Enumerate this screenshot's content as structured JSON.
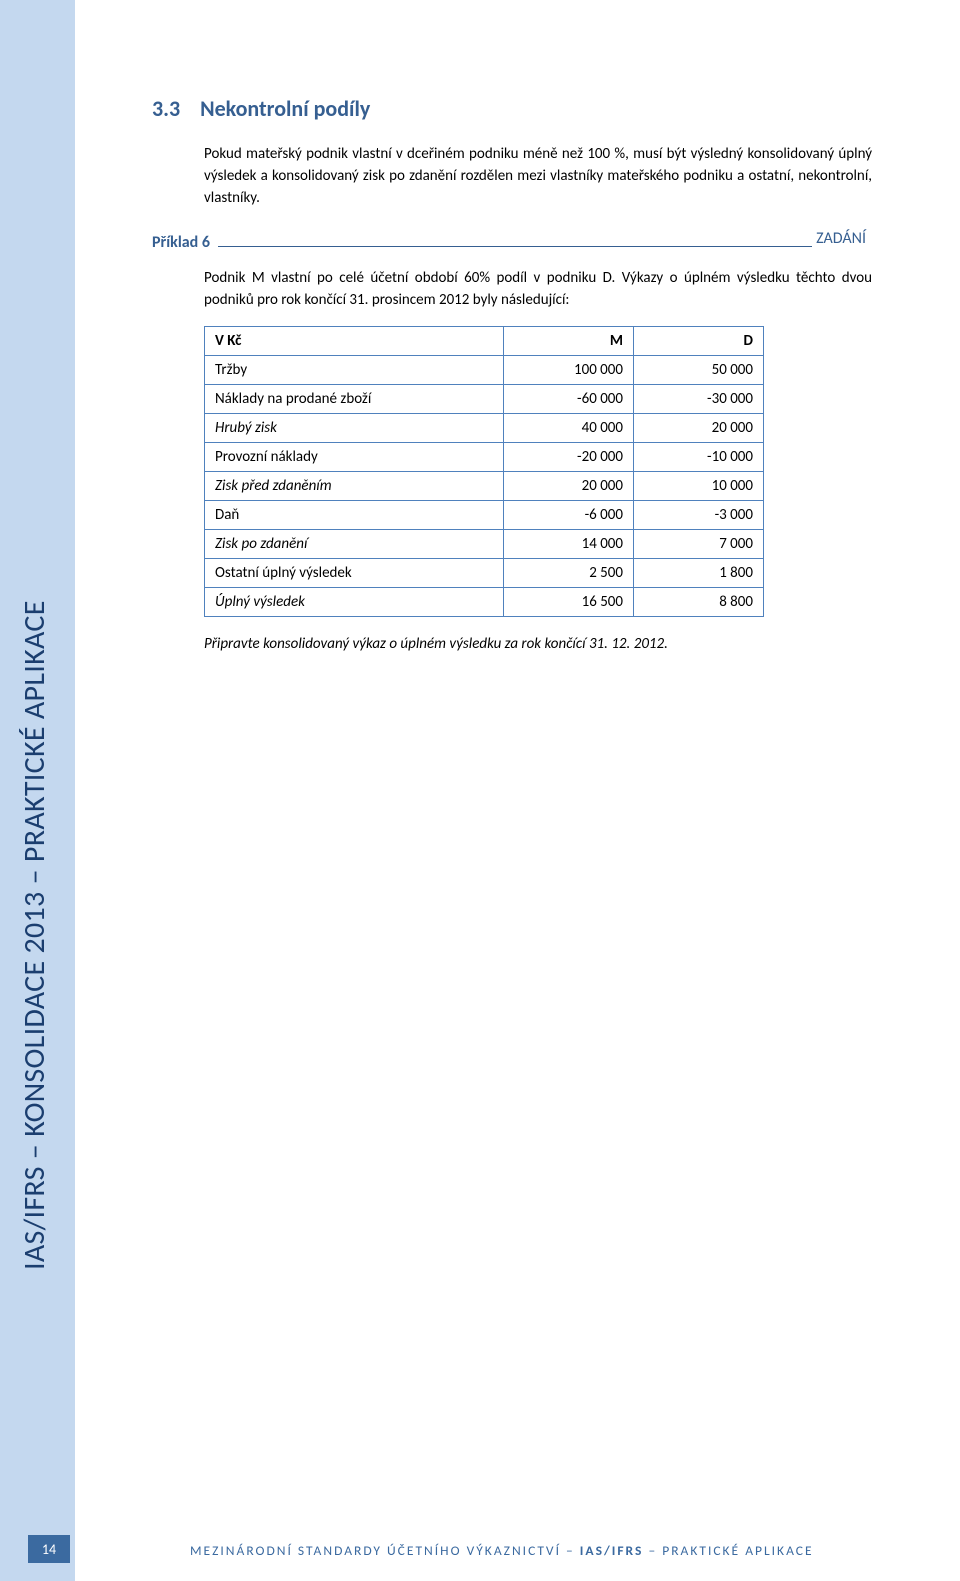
{
  "sidebar": {
    "vertical_label": "IAS/IFRS – KONSOLIDACE 2013 – PRAKTICKÉ APLIKACE",
    "bg_color": "#c4d8ef",
    "text_color": "#1b3e6f"
  },
  "heading": {
    "number": "3.3",
    "title": "Nekontrolní podíly",
    "color": "#365f91"
  },
  "intro_paragraph": "Pokud mateřský podnik vlastní v dceřiném podniku méně než 100 %, musí být výsledný konsolidovaný úplný výsledek a konsolidovaný zisk po zdanění rozdělen mezi vlastníky mateřského podniku a ostatní, nekontrolní, vlastníky.",
  "example": {
    "label": "Příklad 6",
    "zadani": "ZADÁNÍ",
    "color": "#365f91",
    "body": "Podnik M vlastní po celé účetní období 60% podíl v podniku D. Výkazy o úplném výsledku těchto dvou podniků pro rok končící 31. prosincem 2012 byly následující:"
  },
  "table": {
    "border_color": "#4f81bd",
    "columns": [
      "V Kč",
      "M",
      "D"
    ],
    "rows": [
      {
        "label": "Tržby",
        "m": "100 000",
        "d": "50 000",
        "italic": false
      },
      {
        "label": "Náklady na prodané zboží",
        "m": "-60 000",
        "d": "-30 000",
        "italic": false
      },
      {
        "label": "Hrubý zisk",
        "m": "40 000",
        "d": "20 000",
        "italic": true
      },
      {
        "label": "Provozní náklady",
        "m": "-20 000",
        "d": "-10 000",
        "italic": false
      },
      {
        "label": "Zisk před zdaněním",
        "m": "20 000",
        "d": "10 000",
        "italic": true
      },
      {
        "label": "Daň",
        "m": "-6 000",
        "d": "-3 000",
        "italic": false
      },
      {
        "label": "Zisk po zdanění",
        "m": "14 000",
        "d": "7 000",
        "italic": true
      },
      {
        "label": "Ostatní úplný výsledek",
        "m": "2 500",
        "d": "1 800",
        "italic": false
      },
      {
        "label": "Úplný výsledek",
        "m": "16 500",
        "d": "8 800",
        "italic": true
      }
    ]
  },
  "task_line": "Připravte konsolidovaný výkaz o úplném výsledku za rok končící 31. 12. 2012.",
  "footer": {
    "page_number": "14",
    "page_bg": "#3b6aa0",
    "text_prefix": "MEZINÁRODNÍ STANDARDY ÚČETNÍHO VÝKAZNICTVÍ – ",
    "text_bold": "IAS/IFRS",
    "text_suffix": " – PRAKTICKÉ APLIKACE",
    "text_color": "#3b6aa0"
  }
}
